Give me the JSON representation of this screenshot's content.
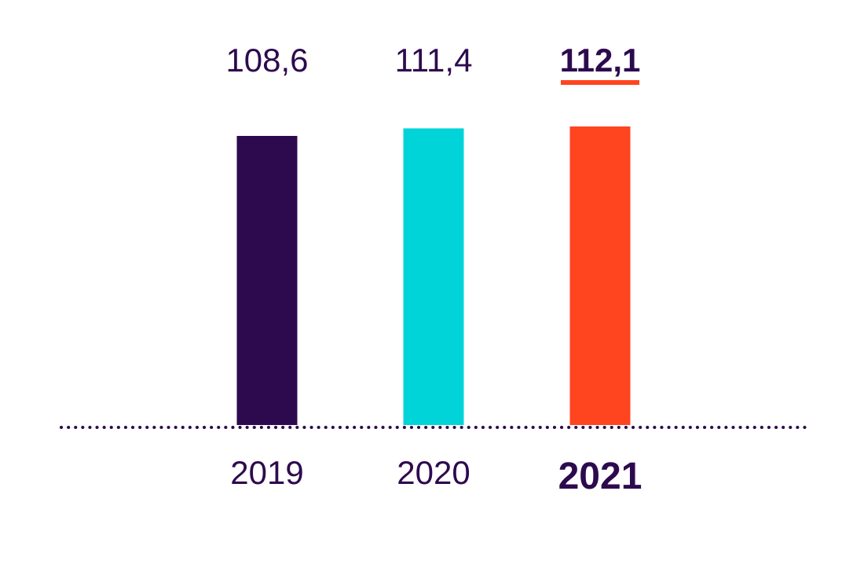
{
  "chart_data": {
    "type": "bar",
    "categories": [
      "2019",
      "2020",
      "2021"
    ],
    "values": [
      108.6,
      111.4,
      112.1
    ],
    "value_labels": [
      "108,6",
      "111,4",
      "112,1"
    ],
    "highlight_category": "2021",
    "colors": [
      "#2d0a4e",
      "#00d4d8",
      "#ff4420"
    ],
    "baseline_color": "#2d0a4e",
    "text_color": "#2d0a4e",
    "title": "",
    "xlabel": "",
    "ylabel": "",
    "legend": "none",
    "grid": false
  }
}
